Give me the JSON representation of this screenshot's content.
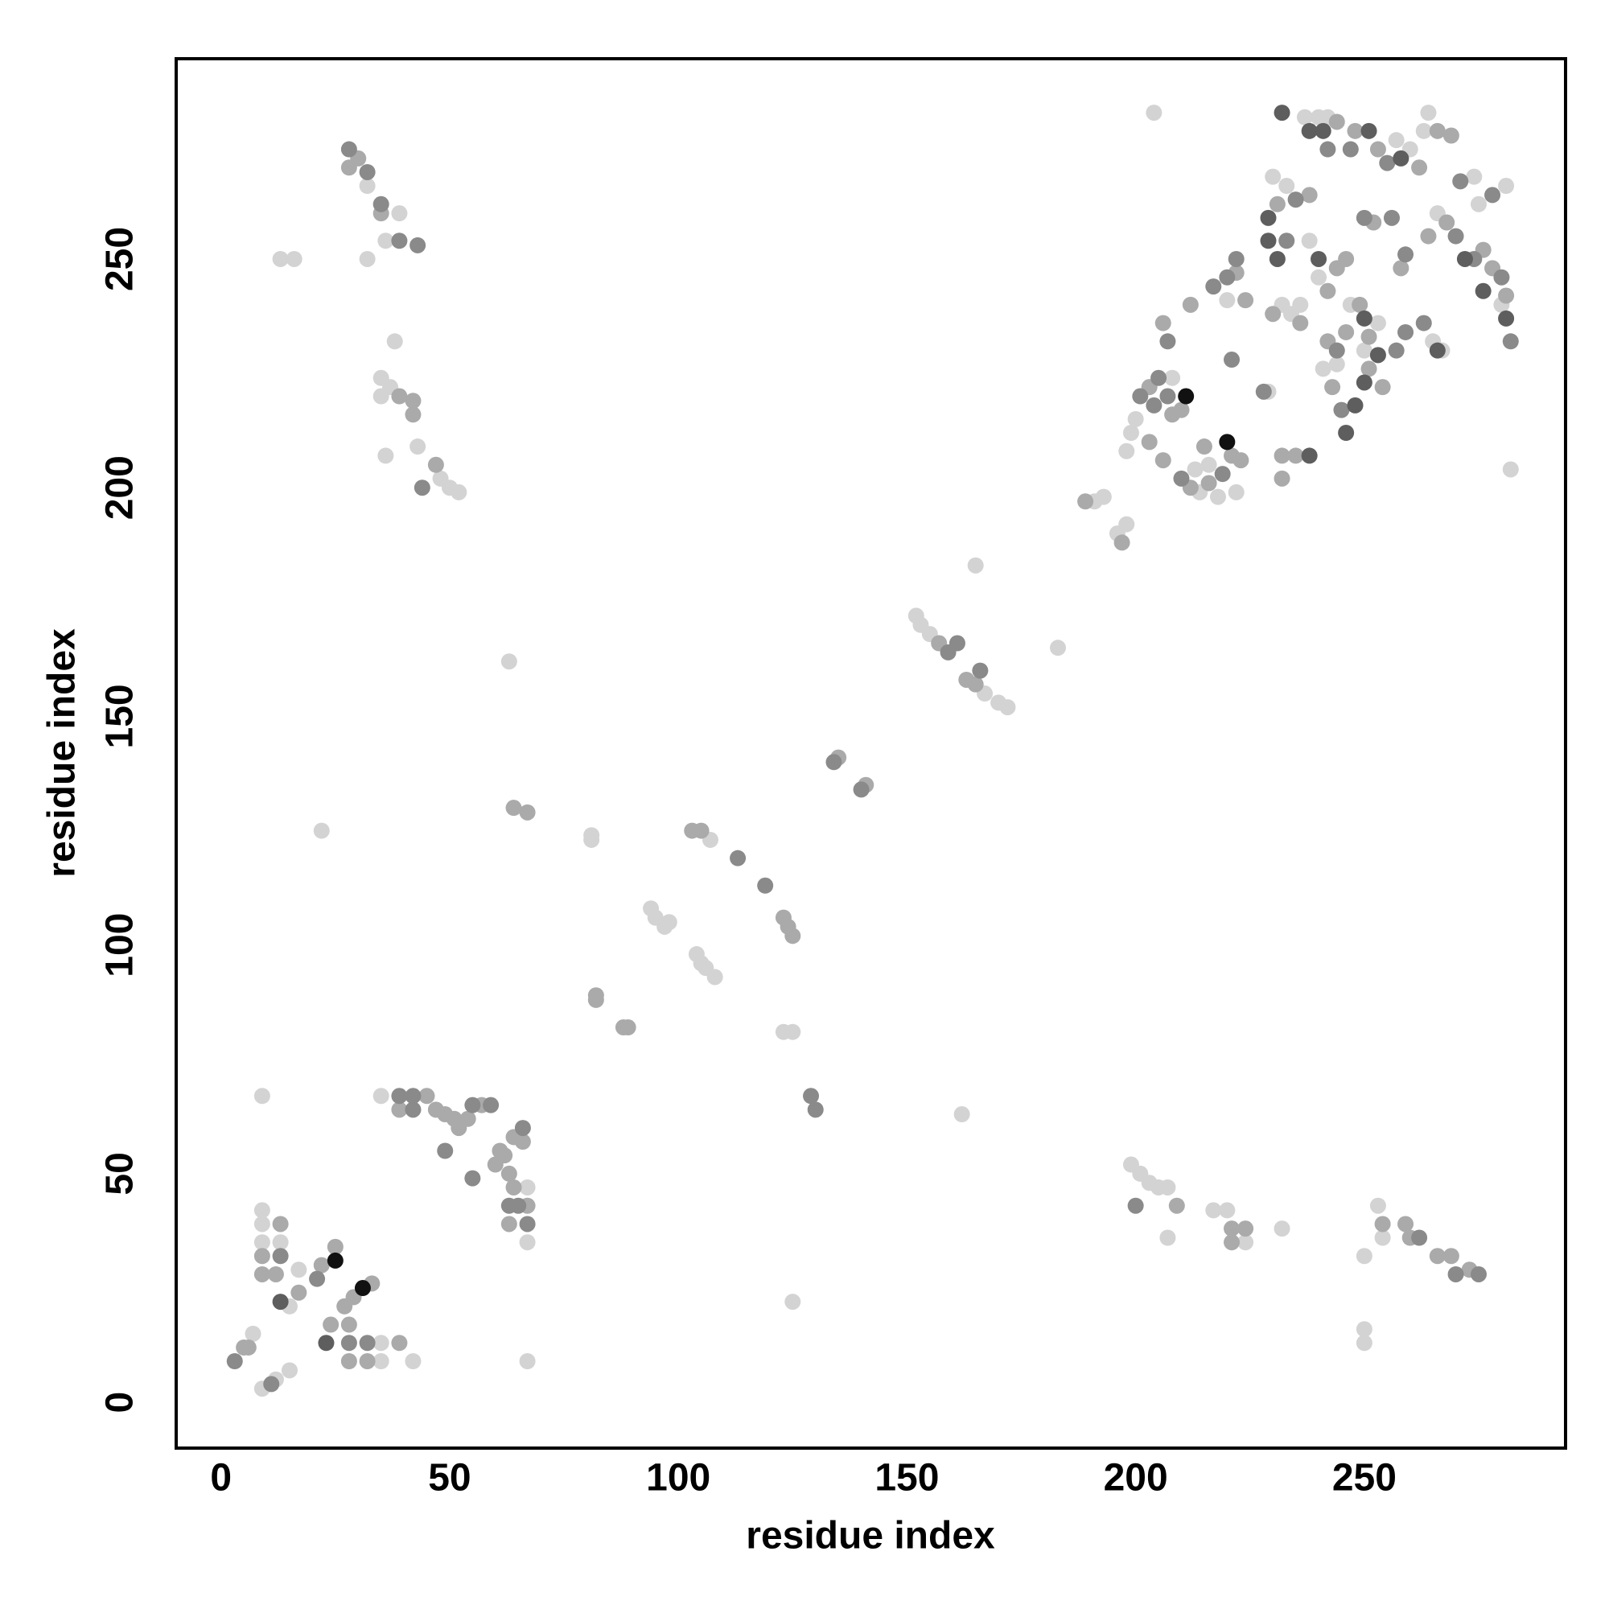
{
  "chart_data": {
    "type": "scatter",
    "xlabel": "residue index",
    "ylabel": "residue index",
    "xlim": [
      -9.8,
      294
    ],
    "ylim": [
      -10,
      293.8
    ],
    "xticks": [
      0,
      50,
      100,
      150,
      200,
      250
    ],
    "yticks": [
      0,
      50,
      100,
      150,
      200,
      250
    ],
    "series": [
      {
        "color": "#d3d3d3",
        "x": [
          7,
          9,
          12,
          9,
          9,
          9,
          13,
          15,
          15,
          17,
          35,
          35,
          42,
          9,
          35,
          67,
          67,
          67,
          13,
          16,
          32,
          39,
          36,
          32,
          38,
          35,
          35,
          37,
          43,
          36,
          48,
          50,
          52,
          22,
          63,
          81,
          81,
          94,
          95,
          97,
          98,
          107,
          104,
          105,
          106,
          108,
          123,
          125,
          125,
          152,
          153,
          155,
          167,
          170,
          172,
          165,
          183,
          162,
          199,
          201,
          203,
          205,
          207,
          207,
          217,
          220,
          224,
          232,
          250,
          250,
          250,
          253,
          254,
          196,
          198,
          191,
          193,
          198,
          199,
          200,
          214,
          218,
          222,
          213,
          216,
          220,
          229,
          232,
          234,
          236,
          238,
          240,
          233,
          230,
          237,
          240,
          242,
          260,
          264,
          263,
          257,
          244,
          241,
          253,
          265,
          267,
          266,
          275,
          281,
          274,
          282,
          204,
          247,
          280,
          208,
          250
        ],
        "y": [
          15,
          3,
          5,
          35,
          39,
          42,
          35,
          7,
          21,
          29,
          9,
          13,
          9,
          67,
          67,
          47,
          35,
          9,
          250,
          250,
          266,
          260,
          254,
          250,
          232,
          224,
          220,
          222,
          209,
          207,
          202,
          200,
          199,
          125,
          162,
          124,
          123,
          108,
          106,
          104,
          105,
          123,
          98,
          96,
          95,
          93,
          81,
          81,
          22,
          172,
          170,
          168,
          155,
          153,
          152,
          183,
          165,
          63,
          52,
          50,
          48,
          47,
          47,
          36,
          42,
          42,
          35,
          38,
          32,
          16,
          13,
          43,
          36,
          190,
          192,
          197,
          198,
          208,
          212,
          215,
          199,
          198,
          199,
          204,
          205,
          241,
          221,
          240,
          238,
          240,
          254,
          246,
          266,
          268,
          281,
          281,
          281,
          274,
          282,
          278,
          276,
          227,
          226,
          236,
          232,
          230,
          260,
          262,
          266,
          268,
          204,
          282,
          240,
          240,
          224,
          230
        ]
      },
      {
        "color": "#aaaaaa",
        "x": [
          5,
          6,
          9,
          9,
          12,
          13,
          17,
          22,
          24,
          25,
          27,
          28,
          29,
          28,
          32,
          33,
          39,
          45,
          39,
          47,
          49,
          51,
          52,
          54,
          57,
          60,
          61,
          62,
          63,
          64,
          63,
          67,
          66,
          64,
          28,
          30,
          35,
          39,
          42,
          42,
          47,
          82,
          82,
          88,
          89,
          103,
          105,
          123,
          124,
          125,
          135,
          141,
          157,
          163,
          165,
          67,
          64,
          197,
          189,
          209,
          221,
          221,
          224,
          254,
          259,
          260,
          266,
          269,
          273,
          206,
          212,
          222,
          224,
          232,
          235,
          230,
          236,
          231,
          238,
          244,
          248,
          253,
          262,
          266,
          269,
          246,
          242,
          243,
          249,
          251,
          252,
          258,
          264,
          268,
          281,
          276,
          278,
          203,
          206,
          212,
          216,
          221,
          223,
          215,
          232,
          244,
          246,
          242,
          251,
          254,
          203,
          208,
          210
        ],
        "y": [
          12,
          12,
          28,
          32,
          28,
          39,
          24,
          30,
          17,
          34,
          21,
          17,
          23,
          9,
          9,
          26,
          13,
          67,
          64,
          64,
          63,
          62,
          60,
          62,
          65,
          52,
          55,
          54,
          50,
          47,
          39,
          43,
          57,
          58,
          270,
          272,
          260,
          220,
          219,
          216,
          205,
          89,
          88,
          82,
          82,
          125,
          125,
          106,
          104,
          102,
          141,
          135,
          166,
          158,
          157,
          129,
          130,
          188,
          197,
          43,
          38,
          35,
          38,
          39,
          39,
          36,
          32,
          32,
          29,
          236,
          240,
          247,
          241,
          207,
          207,
          238,
          236,
          262,
          264,
          280,
          278,
          274,
          270,
          278,
          277,
          234,
          232,
          222,
          240,
          233,
          258,
          248,
          255,
          258,
          242,
          252,
          248,
          210,
          206,
          200,
          201,
          207,
          206,
          209,
          202,
          248,
          250,
          243,
          226,
          222,
          222,
          216,
          217
        ]
      },
      {
        "color": "#8a8a8a",
        "x": [
          3,
          11,
          13,
          21,
          28,
          32,
          39,
          42,
          42,
          49,
          55,
          55,
          59,
          63,
          65,
          67,
          66,
          28,
          32,
          35,
          39,
          43,
          44,
          113,
          119,
          129,
          130,
          134,
          140,
          159,
          161,
          166,
          200,
          262,
          270,
          275,
          207,
          217,
          220,
          222,
          221,
          228,
          233,
          235,
          242,
          247,
          255,
          244,
          245,
          257,
          259,
          263,
          250,
          256,
          259,
          270,
          274,
          280,
          282,
          278,
          271,
          201,
          204,
          207,
          205,
          210,
          219
        ],
        "y": [
          9,
          4,
          32,
          27,
          13,
          13,
          67,
          67,
          64,
          55,
          49,
          65,
          65,
          43,
          43,
          39,
          60,
          274,
          269,
          262,
          254,
          253,
          200,
          119,
          113,
          67,
          64,
          140,
          134,
          164,
          166,
          160,
          43,
          36,
          28,
          28,
          232,
          244,
          246,
          250,
          228,
          221,
          254,
          263,
          274,
          274,
          271,
          230,
          217,
          230,
          234,
          236,
          259,
          259,
          251,
          255,
          250,
          246,
          232,
          264,
          267,
          220,
          218,
          220,
          224,
          202,
          203
        ]
      },
      {
        "color": "#5e5e5e",
        "x": [
          13,
          23,
          232,
          238,
          241,
          251,
          229,
          231,
          240,
          250,
          253,
          258,
          266,
          272,
          276,
          281,
          250,
          248,
          246,
          229,
          238
        ],
        "y": [
          22,
          13,
          282,
          278,
          278,
          278,
          259,
          250,
          250,
          237,
          229,
          272,
          230,
          250,
          243,
          237,
          223,
          218,
          212,
          254,
          207
        ]
      },
      {
        "color": "#111111",
        "x": [
          25,
          31,
          211,
          220
        ],
        "y": [
          31,
          25,
          220,
          210
        ]
      }
    ]
  }
}
